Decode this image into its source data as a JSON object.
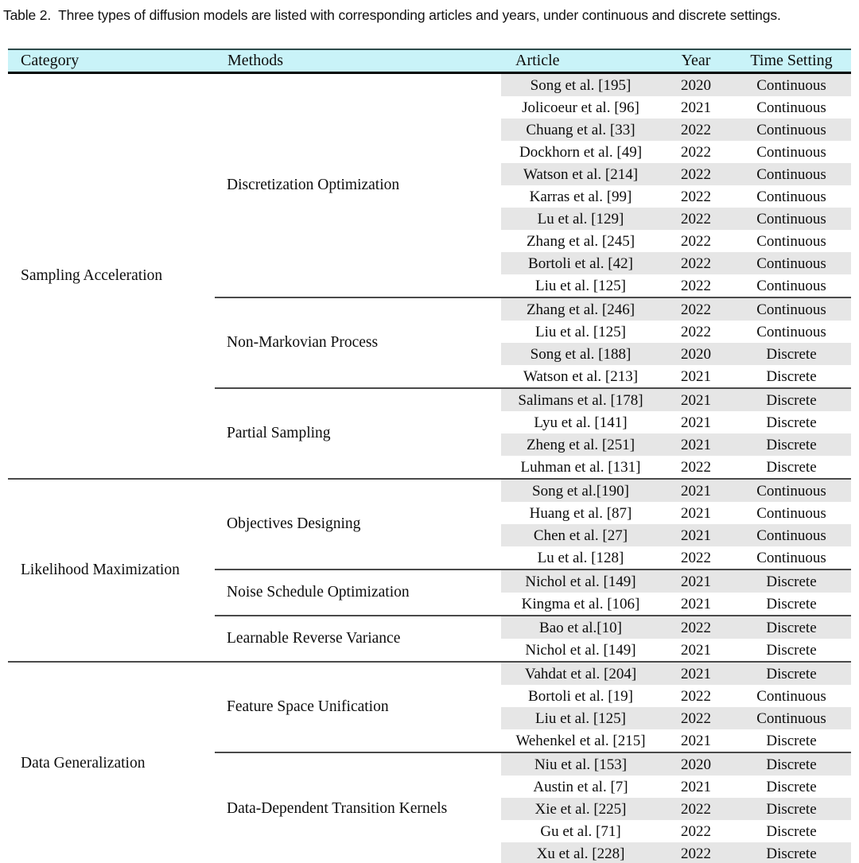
{
  "caption": {
    "label": "Table 2.",
    "text": "Three types of diffusion models are listed with corresponding articles and years, under continuous and discrete settings."
  },
  "table": {
    "headers": [
      "Category",
      "Methods",
      "Article",
      "Year",
      "Time Setting"
    ],
    "colors": {
      "header_bg": "#c9f3f8",
      "row_shade": "#e6e6e6",
      "category_divider": "#4a4a4a",
      "method_divider": "#4a4a4a"
    },
    "categories": [
      {
        "name": "Sampling Acceleration",
        "methods": [
          {
            "name": "Discretization Optimization",
            "rows": [
              {
                "article": "Song et al. [195]",
                "year": "2020",
                "time": "Continuous"
              },
              {
                "article": "Jolicoeur et al. [96]",
                "year": "2021",
                "time": "Continuous"
              },
              {
                "article": "Chuang et al. [33]",
                "year": "2022",
                "time": "Continuous"
              },
              {
                "article": "Dockhorn et al. [49]",
                "year": "2022",
                "time": "Continuous"
              },
              {
                "article": "Watson et al. [214]",
                "year": "2022",
                "time": "Continuous"
              },
              {
                "article": "Karras et al. [99]",
                "year": "2022",
                "time": "Continuous"
              },
              {
                "article": "Lu et al. [129]",
                "year": "2022",
                "time": "Continuous"
              },
              {
                "article": "Zhang et al. [245]",
                "year": "2022",
                "time": "Continuous"
              },
              {
                "article": "Bortoli et al. [42]",
                "year": "2022",
                "time": "Continuous"
              },
              {
                "article": "Liu et al. [125]",
                "year": "2022",
                "time": "Continuous"
              }
            ]
          },
          {
            "name": "Non-Markovian Process",
            "rows": [
              {
                "article": "Zhang et al. [246]",
                "year": "2022",
                "time": "Continuous"
              },
              {
                "article": "Liu et al. [125]",
                "year": "2022",
                "time": "Continuous"
              },
              {
                "article": "Song et al. [188]",
                "year": "2020",
                "time": "Discrete"
              },
              {
                "article": "Watson et al. [213]",
                "year": "2021",
                "time": "Discrete"
              }
            ]
          },
          {
            "name": "Partial Sampling",
            "rows": [
              {
                "article": "Salimans et al. [178]",
                "year": "2021",
                "time": "Discrete"
              },
              {
                "article": "Lyu et al. [141]",
                "year": "2021",
                "time": "Discrete"
              },
              {
                "article": "Zheng et al. [251]",
                "year": "2021",
                "time": "Discrete"
              },
              {
                "article": "Luhman et al. [131]",
                "year": "2022",
                "time": "Discrete"
              }
            ]
          }
        ]
      },
      {
        "name": "Likelihood Maximization",
        "methods": [
          {
            "name": "Objectives Designing",
            "rows": [
              {
                "article": "Song et al.[190]",
                "year": "2021",
                "time": "Continuous"
              },
              {
                "article": "Huang et al. [87]",
                "year": "2021",
                "time": "Continuous"
              },
              {
                "article": "Chen et al. [27]",
                "year": "2021",
                "time": "Continuous"
              },
              {
                "article": "Lu et al. [128]",
                "year": "2022",
                "time": "Continuous"
              }
            ]
          },
          {
            "name": "Noise Schedule Optimization",
            "rows": [
              {
                "article": "Nichol et al. [149]",
                "year": "2021",
                "time": "Discrete"
              },
              {
                "article": "Kingma et al. [106]",
                "year": "2021",
                "time": "Discrete"
              }
            ]
          },
          {
            "name": "Learnable Reverse Variance",
            "rows": [
              {
                "article": "Bao et al.[10]",
                "year": "2022",
                "time": "Discrete"
              },
              {
                "article": "Nichol et al. [149]",
                "year": "2021",
                "time": "Discrete"
              }
            ]
          }
        ]
      },
      {
        "name": "Data Generalization",
        "methods": [
          {
            "name": "Feature Space Unification",
            "rows": [
              {
                "article": "Vahdat et al. [204]",
                "year": "2021",
                "time": "Discrete"
              },
              {
                "article": "Bortoli et al. [19]",
                "year": "2022",
                "time": "Continuous"
              },
              {
                "article": "Liu et al. [125]",
                "year": "2022",
                "time": "Continuous"
              },
              {
                "article": "Wehenkel et al. [215]",
                "year": "2021",
                "time": "Discrete"
              }
            ]
          },
          {
            "name": "Data-Dependent Transition Kernels",
            "rows": [
              {
                "article": "Niu et al. [153]",
                "year": "2020",
                "time": "Discrete"
              },
              {
                "article": "Austin et al. [7]",
                "year": "2021",
                "time": "Discrete"
              },
              {
                "article": "Xie et al. [225]",
                "year": "2022",
                "time": "Discrete"
              },
              {
                "article": "Gu et al. [71]",
                "year": "2022",
                "time": "Discrete"
              },
              {
                "article": "Xu et al. [228]",
                "year": "2022",
                "time": "Discrete"
              }
            ]
          }
        ]
      }
    ]
  }
}
